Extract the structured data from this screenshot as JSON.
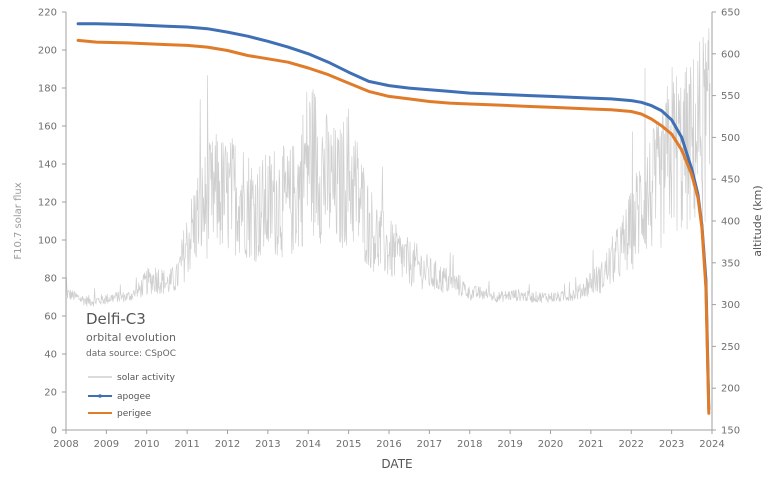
{
  "chart_data": {
    "type": "line",
    "title": "",
    "annotation": {
      "title": "Delfi-C3",
      "subtitle": "orbital evolution",
      "source": "data source: CSpOC"
    },
    "xlabel": "DATE",
    "ylabel_left": "F10.7 solar flux",
    "ylabel_right": "altitude (km)",
    "xlim": [
      2008,
      2024
    ],
    "ylim_left": [
      0,
      220
    ],
    "ylim_right": [
      150,
      650
    ],
    "x_ticks": [
      "2008",
      "2009",
      "2010",
      "2011",
      "2012",
      "2013",
      "2014",
      "2015",
      "2016",
      "2017",
      "2018",
      "2019",
      "2020",
      "2021",
      "2022",
      "2023",
      "2024"
    ],
    "y_left_ticks": [
      "0",
      "20",
      "40",
      "60",
      "80",
      "100",
      "120",
      "140",
      "160",
      "180",
      "200",
      "220"
    ],
    "y_right_ticks": [
      "150",
      "200",
      "250",
      "300",
      "350",
      "400",
      "450",
      "500",
      "550",
      "600",
      "650"
    ],
    "grid": false,
    "legend_position": "bottom-left",
    "colors": {
      "solar": "#cfcfcf",
      "apogee": "#3f6fb5",
      "perigee": "#e07b2a",
      "axis": "#a0a0a0"
    },
    "series": [
      {
        "name": "solar activity",
        "axis": "left",
        "x": [
          2008.0,
          2008.25,
          2008.5,
          2008.75,
          2009.0,
          2009.25,
          2009.5,
          2009.75,
          2010.0,
          2010.25,
          2010.5,
          2010.75,
          2011.0,
          2011.25,
          2011.5,
          2011.75,
          2012.0,
          2012.25,
          2012.5,
          2012.75,
          2013.0,
          2013.25,
          2013.5,
          2013.75,
          2014.0,
          2014.25,
          2014.5,
          2014.75,
          2015.0,
          2015.25,
          2015.5,
          2015.75,
          2016.0,
          2016.25,
          2016.5,
          2016.75,
          2017.0,
          2017.25,
          2017.5,
          2017.75,
          2018.0,
          2018.25,
          2018.5,
          2018.75,
          2019.0,
          2019.25,
          2019.5,
          2019.75,
          2020.0,
          2020.25,
          2020.5,
          2020.75,
          2021.0,
          2021.25,
          2021.5,
          2021.75,
          2022.0,
          2022.25,
          2022.5,
          2022.75,
          2023.0,
          2023.25,
          2023.5,
          2023.75
        ],
        "values": [
          72,
          70,
          68,
          68,
          69,
          70,
          70,
          72,
          78,
          80,
          77,
          80,
          98,
          112,
          120,
          125,
          122,
          125,
          120,
          115,
          118,
          122,
          118,
          125,
          145,
          140,
          130,
          125,
          135,
          122,
          108,
          100,
          95,
          92,
          88,
          86,
          82,
          80,
          78,
          76,
          72,
          72,
          71,
          70,
          71,
          71,
          70,
          70,
          70,
          70,
          71,
          73,
          78,
          80,
          88,
          95,
          105,
          120,
          125,
          130,
          150,
          145,
          150,
          160
        ]
      },
      {
        "name": "apogee",
        "axis": "right",
        "x": [
          2008.3,
          2008.75,
          2009.5,
          2010.0,
          2010.5,
          2011.0,
          2011.5,
          2012.0,
          2012.5,
          2013.0,
          2013.5,
          2014.0,
          2014.5,
          2015.0,
          2015.5,
          2016.0,
          2016.5,
          2017.0,
          2017.5,
          2018.0,
          2018.5,
          2019.0,
          2019.5,
          2020.0,
          2020.5,
          2021.0,
          2021.5,
          2022.0,
          2022.25,
          2022.5,
          2022.75,
          2023.0,
          2023.25,
          2023.5,
          2023.65,
          2023.75,
          2023.85,
          2023.92
        ],
        "values": [
          636,
          636,
          635,
          634,
          633,
          632,
          630,
          626,
          621,
          615,
          608,
          600,
          590,
          578,
          567,
          562,
          559,
          557,
          555,
          553,
          552,
          551,
          550,
          549,
          548,
          547,
          546,
          544,
          542,
          538,
          532,
          521,
          500,
          462,
          432,
          395,
          330,
          175
        ]
      },
      {
        "name": "perigee",
        "axis": "right",
        "x": [
          2008.3,
          2008.75,
          2009.5,
          2010.0,
          2010.5,
          2011.0,
          2011.5,
          2012.0,
          2012.5,
          2013.0,
          2013.5,
          2014.0,
          2014.5,
          2015.0,
          2015.5,
          2016.0,
          2016.5,
          2017.0,
          2017.5,
          2018.0,
          2018.5,
          2019.0,
          2019.5,
          2020.0,
          2020.5,
          2021.0,
          2021.5,
          2022.0,
          2022.25,
          2022.5,
          2022.75,
          2023.0,
          2023.25,
          2023.5,
          2023.65,
          2023.75,
          2023.85,
          2023.92
        ],
        "values": [
          616,
          614,
          613,
          612,
          611,
          610,
          608,
          604,
          598,
          594,
          590,
          583,
          575,
          565,
          555,
          549,
          546,
          543,
          541,
          540,
          539,
          538,
          537,
          536,
          535,
          534,
          533,
          531,
          528,
          522,
          514,
          504,
          485,
          455,
          428,
          392,
          320,
          170
        ]
      }
    ]
  }
}
